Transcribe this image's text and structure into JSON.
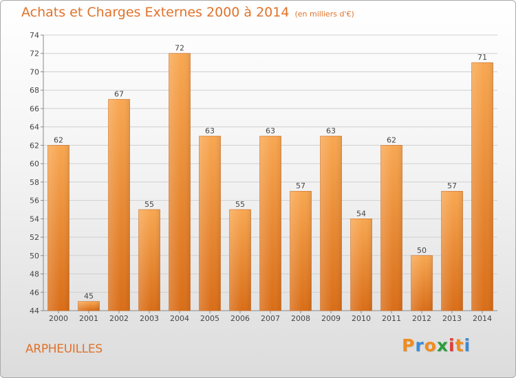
{
  "title": "Achats et Charges Externes 2000 à 2014",
  "unit": "(en milliers d'€)",
  "commune": "ARPHEUILLES",
  "logo": {
    "letters": [
      "P",
      "r",
      "o",
      "x",
      "i",
      "t",
      "i"
    ],
    "colors": [
      "#f08c1e",
      "#3a8bd6",
      "#f08c1e",
      "#2a9d3c",
      "#e23b3b",
      "#f08c1e",
      "#3a8bd6"
    ]
  },
  "colors": {
    "title": "#e0722a",
    "bar_top": "#f8a751",
    "bar_bottom": "#d96d17",
    "grid": "#cfcfcf"
  },
  "chart_data": {
    "type": "bar",
    "categories": [
      "2000",
      "2001",
      "2002",
      "2003",
      "2004",
      "2005",
      "2006",
      "2007",
      "2008",
      "2009",
      "2010",
      "2011",
      "2012",
      "2013",
      "2014"
    ],
    "values": [
      62,
      45,
      67,
      55,
      72,
      63,
      55,
      63,
      57,
      63,
      54,
      62,
      50,
      57,
      71
    ],
    "ylim": [
      44,
      74
    ],
    "yticks": [
      44,
      46,
      48,
      50,
      52,
      54,
      56,
      58,
      60,
      62,
      64,
      66,
      68,
      70,
      72,
      74
    ],
    "grid": true,
    "xlabel": "",
    "ylabel": ""
  }
}
